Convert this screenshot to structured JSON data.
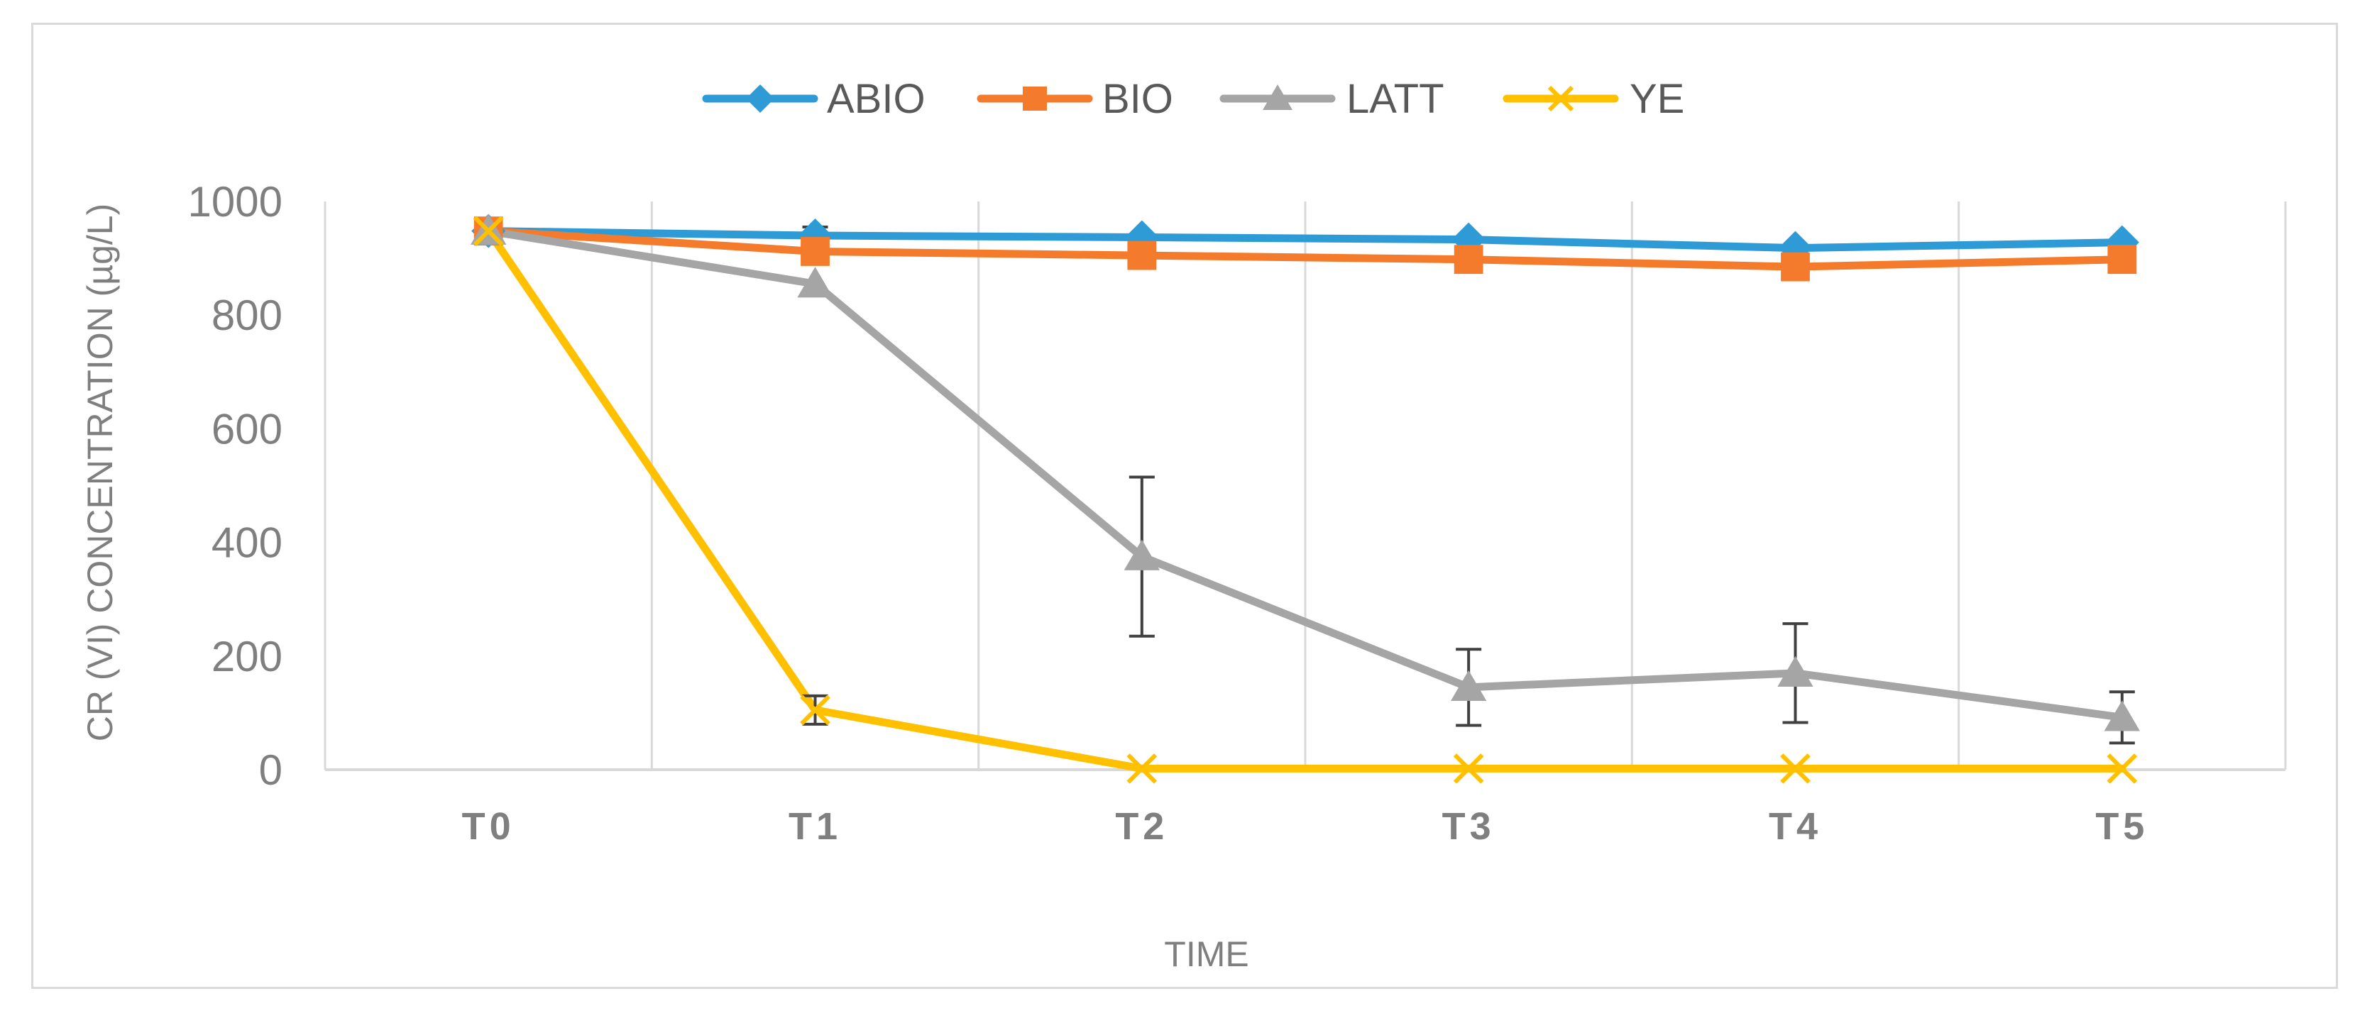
{
  "chart_data": {
    "type": "line",
    "title": "",
    "xlabel": "TIME",
    "ylabel": "CR (VI) CONCENTRATION (µg/L)",
    "categories": [
      "T0",
      "T1",
      "T2",
      "T3",
      "T4",
      "T5"
    ],
    "ylim": [
      0,
      1000
    ],
    "yticks": [
      0,
      200,
      400,
      600,
      800,
      1000
    ],
    "grid": "vertical",
    "legend_position": "top",
    "series": [
      {
        "name": "ABIO",
        "color": "#2E9BD6",
        "marker": "diamond",
        "values": [
          948,
          940,
          937,
          933,
          918,
          928
        ],
        "errors": [
          0,
          15,
          0,
          0,
          0,
          0
        ]
      },
      {
        "name": "BIO",
        "color": "#F47B2B",
        "marker": "square",
        "values": [
          948,
          912,
          905,
          898,
          885,
          898
        ],
        "errors": [
          0,
          0,
          0,
          0,
          0,
          0
        ]
      },
      {
        "name": "LATT",
        "color": "#A5A5A5",
        "marker": "triangle",
        "values": [
          948,
          855,
          375,
          145,
          170,
          92
        ],
        "errors": [
          0,
          0,
          140,
          67,
          87,
          45
        ]
      },
      {
        "name": "YE",
        "color": "#FFC000",
        "marker": "x",
        "values": [
          948,
          105,
          2,
          2,
          2,
          2
        ],
        "errors": [
          0,
          25,
          0,
          0,
          0,
          0
        ]
      }
    ]
  }
}
